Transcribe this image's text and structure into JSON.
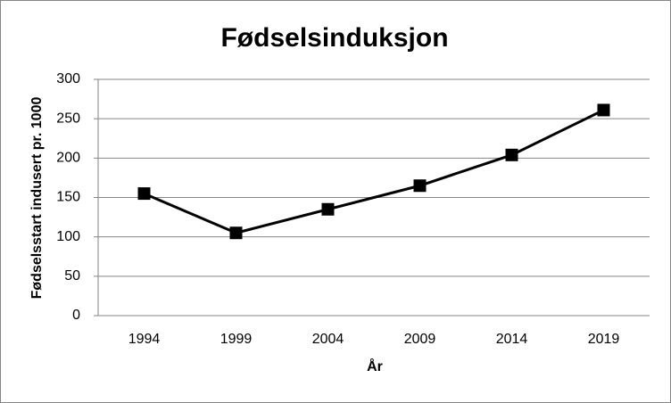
{
  "chart_data": {
    "type": "line",
    "title": "Fødselsinduksjon",
    "x_label": "År",
    "y_label": "Fødselsstart indusert pr. 1000",
    "categories": [
      "1994",
      "1999",
      "2004",
      "2009",
      "2014",
      "2019"
    ],
    "series": [
      {
        "name": "Fødselsinduksjon",
        "color": "#000000",
        "values": [
          155,
          105,
          135,
          165,
          204,
          261
        ]
      }
    ],
    "ylim": [
      0,
      300
    ],
    "yticks": [
      0,
      50,
      100,
      150,
      200,
      250,
      300
    ],
    "grid": true,
    "legend": false
  }
}
